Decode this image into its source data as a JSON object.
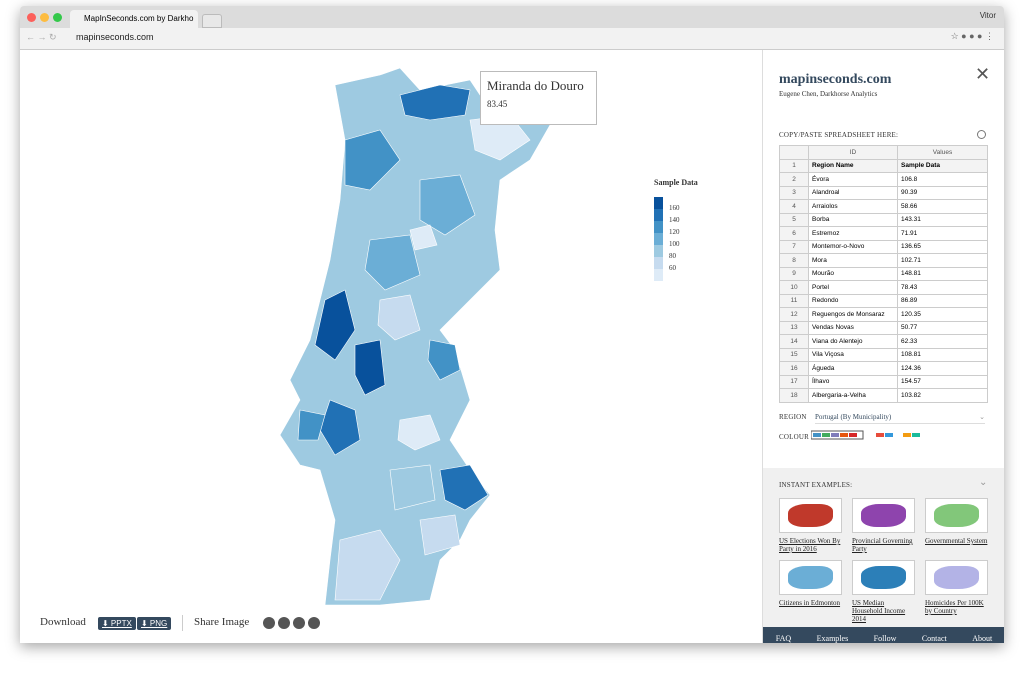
{
  "browser": {
    "tab_title": "MapInSeconds.com by Darkho",
    "url": "mapinseconds.com",
    "user": "Vitor"
  },
  "map": {
    "tooltip": {
      "name": "Miranda do Douro",
      "value": 83.45
    },
    "legend": {
      "title": "Sample Data",
      "ticks": [
        160,
        140,
        120,
        100,
        80,
        60
      ],
      "colors": [
        "#08519c",
        "#2171b5",
        "#4292c6",
        "#6baed6",
        "#9ecae1",
        "#c6dbef",
        "#deebf7"
      ]
    }
  },
  "toolbar": {
    "download": "Download",
    "buttons": [
      "⬇ PPTX",
      "⬇ PNG"
    ],
    "share": "Share Image"
  },
  "sidebar": {
    "logo": "mapinseconds.com",
    "credit": "Eugene Chen, Darkhorse Analytics",
    "paste_label": "COPY/PASTE SPREADSHEET HERE:",
    "table": {
      "columns": [
        "ID",
        "Values"
      ],
      "rows": [
        [
          1,
          "Region Name",
          "Sample Data"
        ],
        [
          2,
          "Évora",
          106.8
        ],
        [
          3,
          "Alandroal",
          90.39
        ],
        [
          4,
          "Arraiolos",
          58.66
        ],
        [
          5,
          "Borba",
          143.31
        ],
        [
          6,
          "Estremoz",
          71.91
        ],
        [
          7,
          "Montemor-o-Novo",
          136.65
        ],
        [
          8,
          "Mora",
          102.71
        ],
        [
          9,
          "Mourão",
          148.81
        ],
        [
          10,
          "Portel",
          78.43
        ],
        [
          11,
          "Redondo",
          86.89
        ],
        [
          12,
          "Reguengos de Monsaraz",
          120.35
        ],
        [
          13,
          "Vendas Novas",
          50.77
        ],
        [
          14,
          "Viana do Alentejo",
          62.33
        ],
        [
          15,
          "Vila Viçosa",
          108.81
        ],
        [
          16,
          "Águeda",
          124.36
        ],
        [
          17,
          "Ílhavo",
          154.57
        ],
        [
          18,
          "Albergaria-a-Velha",
          103.82
        ]
      ]
    },
    "region_label": "REGION",
    "region_value": "Portugal (By Municipality)",
    "colour_label": "COLOUR",
    "examples_title": "INSTANT EXAMPLES:",
    "examples": [
      "US Elections Won By Party in 2016",
      "Provincial Governing Party",
      "Governmental System",
      "Citizens in Edmonton",
      "US Median Household Income 2014",
      "Homicides Per 100K by Country"
    ],
    "footer": [
      "FAQ",
      "Examples",
      "Follow",
      "Contact",
      "About"
    ]
  }
}
